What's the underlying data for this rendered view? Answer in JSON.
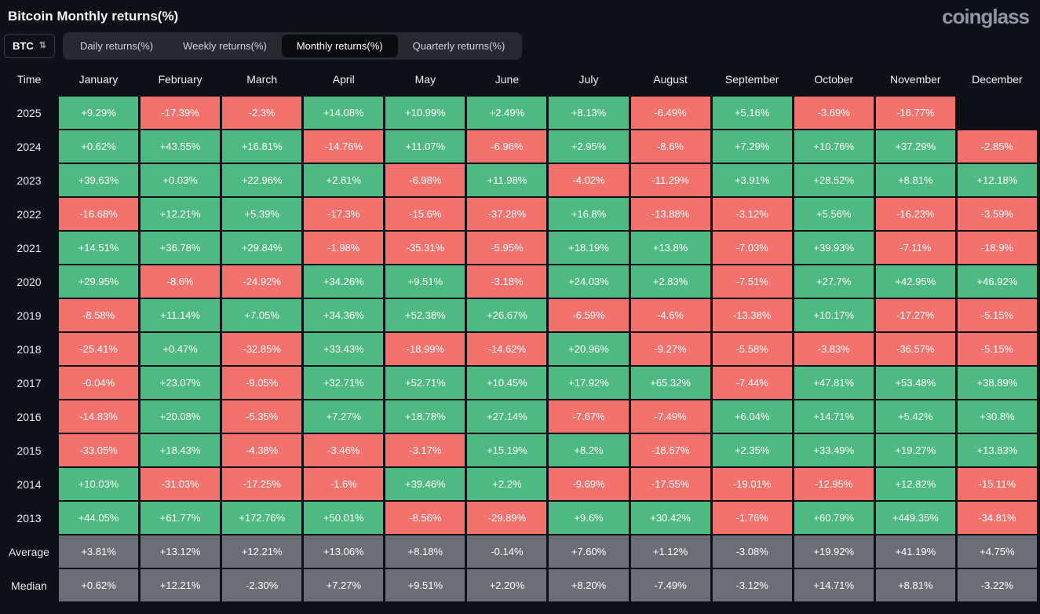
{
  "header": {
    "title": "Bitcoin Monthly returns(%)",
    "logo": "coinglass"
  },
  "controls": {
    "symbol": "BTC",
    "updown_icon": "⇅",
    "tabs": [
      {
        "label": "Daily returns(%)",
        "active": false
      },
      {
        "label": "Weekly returns(%)",
        "active": false
      },
      {
        "label": "Monthly returns(%)",
        "active": true
      },
      {
        "label": "Quarterly returns(%)",
        "active": false
      }
    ]
  },
  "colors": {
    "green": "#4eb983",
    "red": "#f4726e",
    "gray": "#6b6e74"
  },
  "chart_data": {
    "type": "heatmap",
    "title": "Bitcoin Monthly returns(%)",
    "legend_note": "green = positive monthly return, red = negative, gray = Average/Median summary rows",
    "columns": [
      "Time",
      "January",
      "February",
      "March",
      "April",
      "May",
      "June",
      "July",
      "August",
      "September",
      "October",
      "November",
      "December"
    ],
    "rows": [
      {
        "label": "2025",
        "type": "year",
        "cells": [
          "+9.29%",
          "-17.39%",
          "-2.3%",
          "+14.08%",
          "+10.99%",
          "+2.49%",
          "+8.13%",
          "-6.49%",
          "+5.16%",
          "-3.69%",
          "-16.77%",
          null
        ]
      },
      {
        "label": "2024",
        "type": "year",
        "cells": [
          "+0.62%",
          "+43.55%",
          "+16.81%",
          "-14.76%",
          "+11.07%",
          "-6.96%",
          "+2.95%",
          "-8.6%",
          "+7.29%",
          "+10.76%",
          "+37.29%",
          "-2.85%"
        ]
      },
      {
        "label": "2023",
        "type": "year",
        "cells": [
          "+39.63%",
          "+0.03%",
          "+22.96%",
          "+2.81%",
          "-6.98%",
          "+11.98%",
          "-4.02%",
          "-11.29%",
          "+3.91%",
          "+28.52%",
          "+8.81%",
          "+12.18%"
        ]
      },
      {
        "label": "2022",
        "type": "year",
        "cells": [
          "-16.68%",
          "+12.21%",
          "+5.39%",
          "-17.3%",
          "-15.6%",
          "-37.28%",
          "+16.8%",
          "-13.88%",
          "-3.12%",
          "+5.56%",
          "-16.23%",
          "-3.59%"
        ]
      },
      {
        "label": "2021",
        "type": "year",
        "cells": [
          "+14.51%",
          "+36.78%",
          "+29.84%",
          "-1.98%",
          "-35.31%",
          "-5.95%",
          "+18.19%",
          "+13.8%",
          "-7.03%",
          "+39.93%",
          "-7.11%",
          "-18.9%"
        ]
      },
      {
        "label": "2020",
        "type": "year",
        "cells": [
          "+29.95%",
          "-8.6%",
          "-24.92%",
          "+34.26%",
          "+9.51%",
          "-3.18%",
          "+24.03%",
          "+2.83%",
          "-7.51%",
          "+27.7%",
          "+42.95%",
          "+46.92%"
        ]
      },
      {
        "label": "2019",
        "type": "year",
        "cells": [
          "-8.58%",
          "+11.14%",
          "+7.05%",
          "+34.36%",
          "+52.38%",
          "+26.67%",
          "-6.59%",
          "-4.6%",
          "-13.38%",
          "+10.17%",
          "-17.27%",
          "-5.15%"
        ]
      },
      {
        "label": "2018",
        "type": "year",
        "cells": [
          "-25.41%",
          "+0.47%",
          "-32.85%",
          "+33.43%",
          "-18.99%",
          "-14.62%",
          "+20.96%",
          "-9.27%",
          "-5.58%",
          "-3.83%",
          "-36.57%",
          "-5.15%"
        ]
      },
      {
        "label": "2017",
        "type": "year",
        "cells": [
          "-0.04%",
          "+23.07%",
          "-9.05%",
          "+32.71%",
          "+52.71%",
          "+10.45%",
          "+17.92%",
          "+65.32%",
          "-7.44%",
          "+47.81%",
          "+53.48%",
          "+38.89%"
        ]
      },
      {
        "label": "2016",
        "type": "year",
        "cells": [
          "-14.83%",
          "+20.08%",
          "-5.35%",
          "+7.27%",
          "+18.78%",
          "+27.14%",
          "-7.67%",
          "-7.49%",
          "+6.04%",
          "+14.71%",
          "+5.42%",
          "+30.8%"
        ]
      },
      {
        "label": "2015",
        "type": "year",
        "cells": [
          "-33.05%",
          "+18.43%",
          "-4.38%",
          "-3.46%",
          "-3.17%",
          "+15.19%",
          "+8.2%",
          "-18.67%",
          "+2.35%",
          "+33.49%",
          "+19.27%",
          "+13.83%"
        ]
      },
      {
        "label": "2014",
        "type": "year",
        "cells": [
          "+10.03%",
          "-31.03%",
          "-17.25%",
          "-1.6%",
          "+39.46%",
          "+2.2%",
          "-9.69%",
          "-17.55%",
          "-19.01%",
          "-12.95%",
          "+12.82%",
          "-15.11%"
        ]
      },
      {
        "label": "2013",
        "type": "year",
        "cells": [
          "+44.05%",
          "+61.77%",
          "+172.76%",
          "+50.01%",
          "-8.56%",
          "-29.89%",
          "+9.6%",
          "+30.42%",
          "-1.76%",
          "+60.79%",
          "+449.35%",
          "-34.81%"
        ]
      },
      {
        "label": "Average",
        "type": "summary",
        "cells": [
          "+3.81%",
          "+13.12%",
          "+12.21%",
          "+13.06%",
          "+8.18%",
          "-0.14%",
          "+7.60%",
          "+1.12%",
          "-3.08%",
          "+19.92%",
          "+41.19%",
          "+4.75%"
        ]
      },
      {
        "label": "Median",
        "type": "summary",
        "cells": [
          "+0.62%",
          "+12.21%",
          "-2.30%",
          "+7.27%",
          "+9.51%",
          "+2.20%",
          "+8.20%",
          "-7.49%",
          "-3.12%",
          "+14.71%",
          "+8.81%",
          "-3.22%"
        ]
      }
    ]
  }
}
